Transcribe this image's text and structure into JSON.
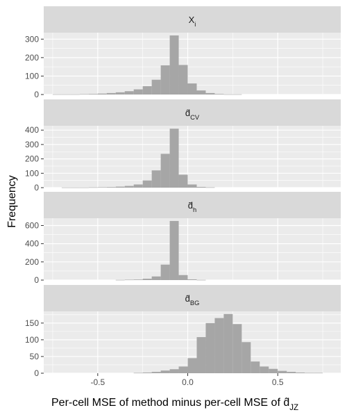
{
  "chart_data": {
    "type": "histogram",
    "xlabel": "Per-cell MSE of method minus per-cell MSE of d̂JZ",
    "xlabel_parts": {
      "prefix": "Per-cell MSE of method minus per-cell MSE of ",
      "symbol": "d",
      "accent": "^",
      "subscript": "JZ"
    },
    "ylabel": "Frequency",
    "xlim": [
      -0.8,
      0.85
    ],
    "x_ticks": [
      -0.5,
      0.0,
      0.5
    ],
    "x_tick_labels": [
      "-0.5",
      "0.0",
      "0.5"
    ],
    "bin_width": 0.05,
    "bin_start": -0.75,
    "grid": true,
    "colors": {
      "panel_bg": "#ebebeb",
      "strip_bg": "#d9d9d9",
      "bar_fill": "#a6a6a6",
      "grid": "#ffffff"
    },
    "panels": [
      {
        "strip": {
          "symbol": "X",
          "accent": "",
          "subscript": "i"
        },
        "ylim": [
          0,
          335
        ],
        "y_ticks": [
          0,
          100,
          200,
          300
        ],
        "y_tick_labels": [
          "0",
          "100",
          "200",
          "300"
        ],
        "values": [
          1,
          1,
          1,
          2,
          3,
          5,
          8,
          12,
          18,
          28,
          45,
          80,
          158,
          320,
          160,
          60,
          22,
          8,
          3,
          1,
          1,
          0,
          0,
          0,
          0,
          0,
          0,
          0,
          0,
          0,
          0
        ]
      },
      {
        "strip": {
          "symbol": "d",
          "accent": "^",
          "subscript": "CV"
        },
        "ylim": [
          0,
          430
        ],
        "y_ticks": [
          0,
          100,
          200,
          300,
          400
        ],
        "y_tick_labels": [
          "0",
          "100",
          "200",
          "300",
          "400"
        ],
        "values": [
          0,
          1,
          1,
          1,
          2,
          3,
          4,
          7,
          12,
          22,
          50,
          120,
          235,
          410,
          90,
          22,
          5,
          2,
          0,
          0,
          0,
          0,
          0,
          0,
          0,
          0,
          0,
          0,
          0,
          0,
          0
        ]
      },
      {
        "strip": {
          "symbol": "d",
          "accent": "~",
          "subscript": "h"
        },
        "ylim": [
          0,
          680
        ],
        "y_ticks": [
          0,
          200,
          400,
          600
        ],
        "y_tick_labels": [
          "0",
          "200",
          "400",
          "600"
        ],
        "values": [
          0,
          0,
          0,
          0,
          0,
          0,
          0,
          2,
          4,
          6,
          15,
          40,
          170,
          650,
          55,
          8,
          2,
          0,
          0,
          0,
          0,
          0,
          0,
          0,
          0,
          0,
          0,
          0,
          0,
          0,
          0
        ]
      },
      {
        "strip": {
          "symbol": "d",
          "accent": "^",
          "subscript": "BG"
        },
        "ylim": [
          0,
          185
        ],
        "y_ticks": [
          0,
          50,
          100,
          150
        ],
        "y_tick_labels": [
          "0",
          "50",
          "100",
          "150"
        ],
        "values": [
          0,
          0,
          0,
          0,
          0,
          0,
          0,
          0,
          0,
          1,
          2,
          4,
          8,
          12,
          20,
          45,
          108,
          150,
          165,
          177,
          147,
          93,
          35,
          20,
          13,
          7,
          4,
          2,
          1,
          1,
          0
        ]
      }
    ]
  }
}
